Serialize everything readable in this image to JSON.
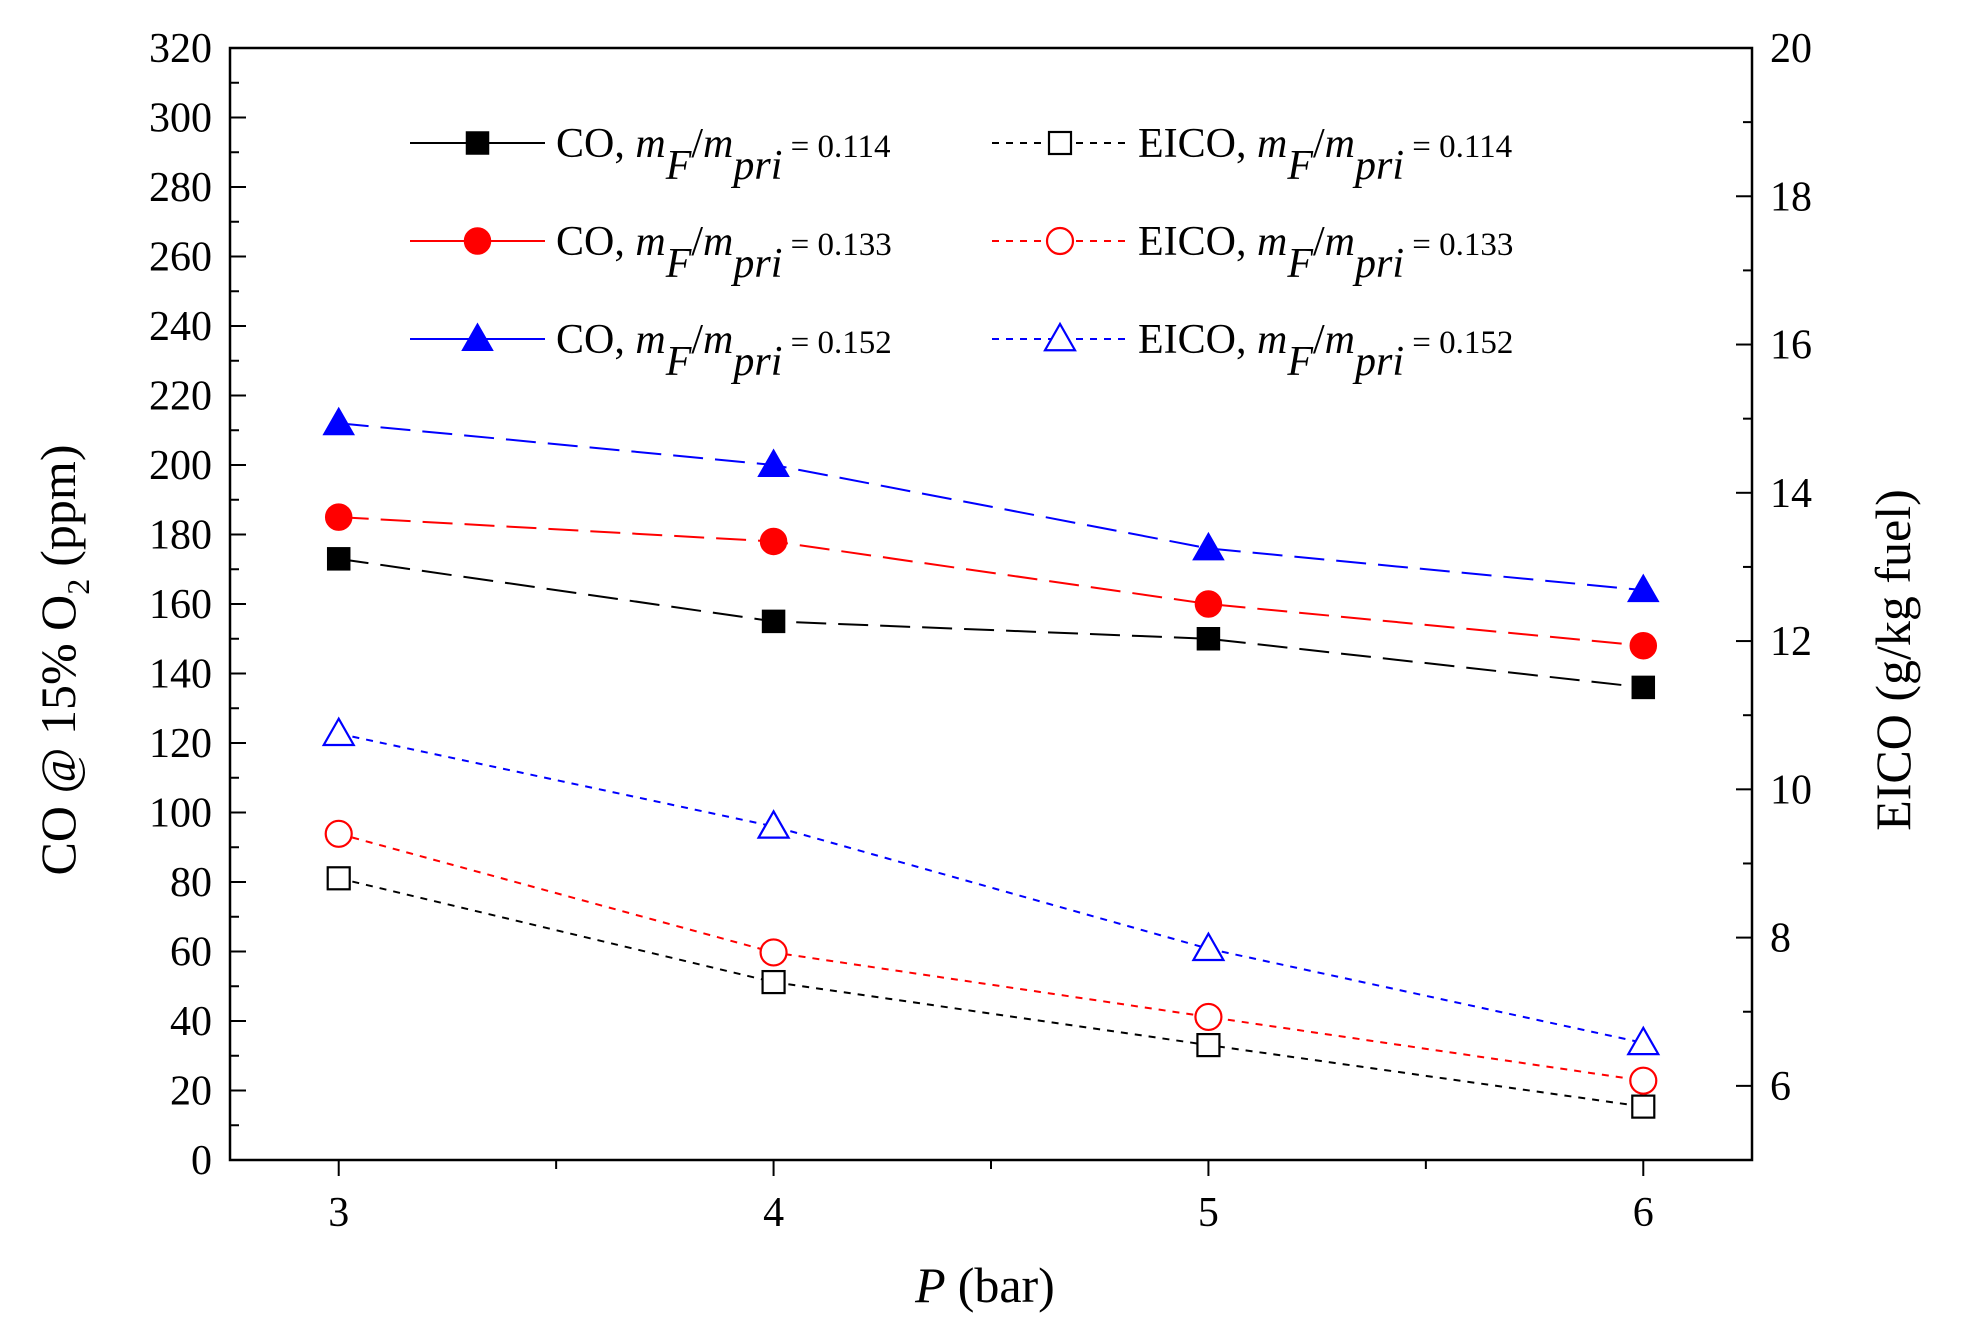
{
  "chart_data": {
    "type": "line",
    "x": [
      3,
      4,
      5,
      6
    ],
    "xlabel_var": "P",
    "xlabel_unit": "(bar)",
    "xlim": [
      2.75,
      6.25
    ],
    "xticks": [
      "3",
      "4",
      "5",
      "6"
    ],
    "ylabel_prefix": "CO @ 15% O",
    "ylabel_sub": "2",
    "ylabel_suffix": "(ppm)",
    "ylim": [
      0,
      320
    ],
    "yticks": [
      "0",
      "20",
      "40",
      "60",
      "80",
      "100",
      "120",
      "140",
      "160",
      "180",
      "200",
      "220",
      "240",
      "260",
      "280",
      "300",
      "320"
    ],
    "y2label": "EICO (g/kg fuel)",
    "y2lim": [
      5,
      20
    ],
    "y2ticks": [
      "6",
      "8",
      "10",
      "12",
      "14",
      "16",
      "18",
      "20"
    ],
    "legend_position": "top",
    "legend_ratio_num": "m",
    "legend_ratio_num_sub": "F",
    "legend_ratio_den": "m",
    "legend_ratio_den_sub": "pri",
    "series": [
      {
        "name": "CO",
        "ratio": "= 0.114",
        "axis": "left",
        "color": "#000000",
        "marker": "square",
        "filled": true,
        "dash": "long",
        "values": [
          173,
          155,
          150,
          136
        ]
      },
      {
        "name": "CO",
        "ratio": "= 0.133",
        "axis": "left",
        "color": "#ff0000",
        "marker": "circle",
        "filled": true,
        "dash": "long",
        "values": [
          185,
          178,
          160,
          148
        ]
      },
      {
        "name": "CO",
        "ratio": "= 0.152",
        "axis": "left",
        "color": "#0000ff",
        "marker": "triangle",
        "filled": true,
        "dash": "long",
        "values": [
          212,
          200,
          176,
          164
        ]
      },
      {
        "name": "EICO",
        "ratio": "= 0.114",
        "axis": "right",
        "color": "#000000",
        "marker": "square",
        "filled": false,
        "dash": "short",
        "values": [
          8.8,
          7.4,
          6.55,
          5.72
        ]
      },
      {
        "name": "EICO",
        "ratio": "= 0.133",
        "axis": "right",
        "color": "#ff0000",
        "marker": "circle",
        "filled": false,
        "dash": "short",
        "values": [
          9.4,
          7.8,
          6.93,
          6.07
        ]
      },
      {
        "name": "EICO",
        "ratio": "= 0.152",
        "axis": "right",
        "color": "#0000ff",
        "marker": "triangle",
        "filled": false,
        "dash": "short",
        "values": [
          10.75,
          9.5,
          7.85,
          6.58
        ]
      }
    ]
  }
}
